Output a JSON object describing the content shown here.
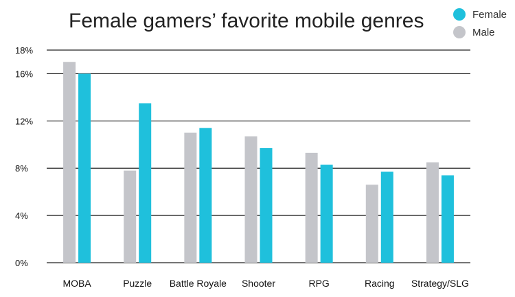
{
  "chart_data": {
    "type": "bar",
    "title": "Female gamers’ favorite mobile genres",
    "categories": [
      "MOBA",
      "Puzzle",
      "Battle Royale",
      "Shooter",
      "RPG",
      "Racing",
      "Strategy/SLG"
    ],
    "series": [
      {
        "name": "Male",
        "color": "#c4c5ca",
        "values": [
          17,
          7.8,
          11,
          10.7,
          9.3,
          6.6,
          8.5
        ]
      },
      {
        "name": "Female",
        "color": "#1fc0dc",
        "values": [
          16,
          13.5,
          11.4,
          9.7,
          8.3,
          7.7,
          7.4
        ]
      }
    ],
    "yticks": [
      0,
      4,
      8,
      12,
      16,
      18
    ],
    "ytick_labels": [
      "0%",
      "4%",
      "8%",
      "12%",
      "16%",
      "18%"
    ],
    "ylim": [
      0,
      18
    ],
    "grid": true,
    "legend_position": "top-right"
  }
}
